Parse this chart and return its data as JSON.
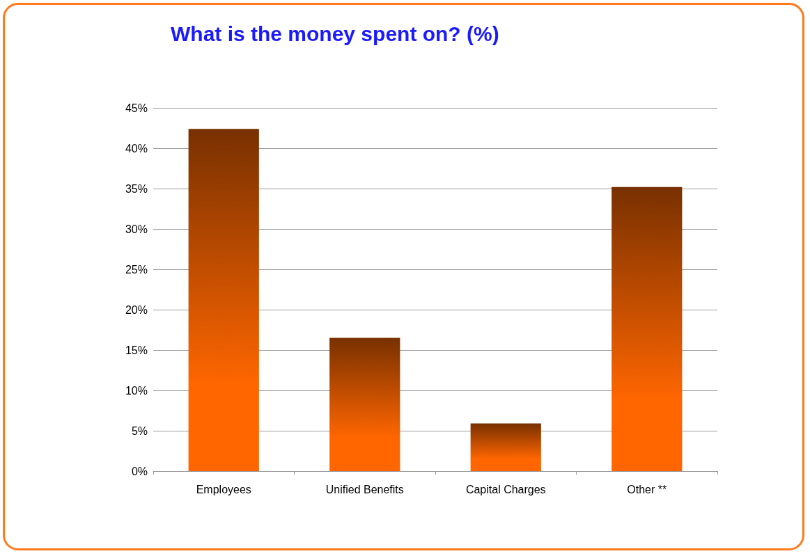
{
  "chart_data": {
    "type": "bar",
    "title": "What is the money spent on? (%)",
    "categories": [
      "Employees",
      "Unified Benefits",
      "Capital Charges",
      "Other **"
    ],
    "values": [
      42.4,
      16.5,
      5.9,
      35.2
    ],
    "color": "#ff6600",
    "ylim": [
      0,
      45
    ],
    "yticks": [
      {
        "value": 0,
        "label": "0%"
      },
      {
        "value": 5,
        "label": "5%"
      },
      {
        "value": 10,
        "label": "10%"
      },
      {
        "value": 15,
        "label": "15%"
      },
      {
        "value": 20,
        "label": "20%"
      },
      {
        "value": 25,
        "label": "25%"
      },
      {
        "value": 30,
        "label": "30%"
      },
      {
        "value": 35,
        "label": "35%"
      },
      {
        "value": 40,
        "label": "40%"
      },
      {
        "value": 45,
        "label": "45%"
      }
    ],
    "grid": "y"
  }
}
